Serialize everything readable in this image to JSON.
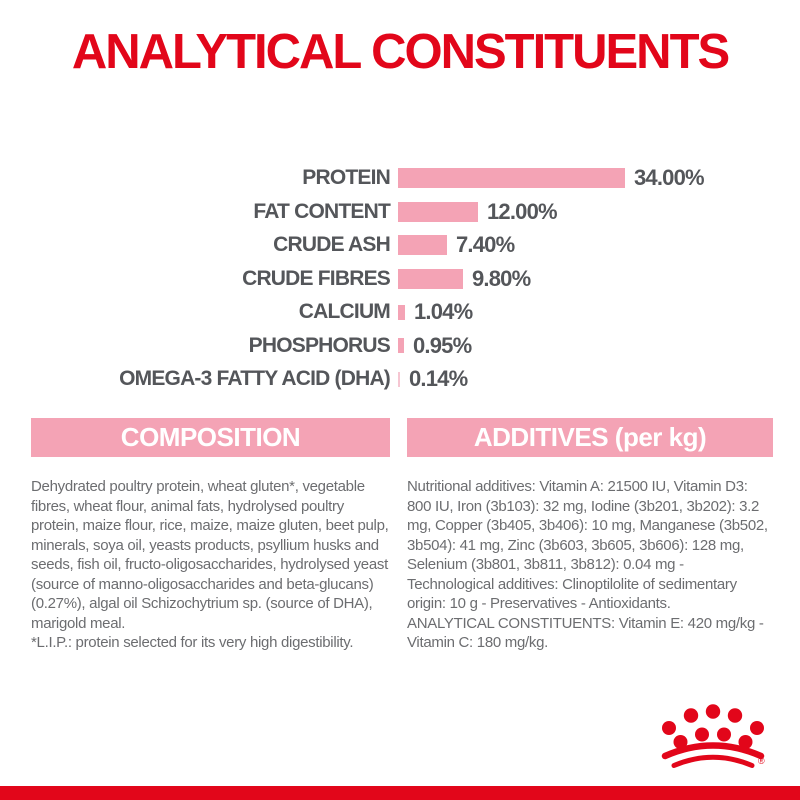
{
  "title": "ANALYTICAL CONSTITUENTS",
  "brand_colors": {
    "red": "#e2061a",
    "pink": "#f4a3b5",
    "light_pink": "#f6c6d2",
    "label_gray": "#54565a",
    "body_gray": "#6c6d70"
  },
  "chart_data": {
    "type": "bar",
    "orientation": "horizontal",
    "title": "ANALYTICAL CONSTITUENTS",
    "categories": [
      "PROTEIN",
      "FAT CONTENT",
      "CRUDE ASH",
      "CRUDE FIBRES",
      "CALCIUM",
      "PHOSPHORUS",
      "OMEGA-3 FATTY ACID (DHA)"
    ],
    "values": [
      34.0,
      12.0,
      7.4,
      9.8,
      1.04,
      0.95,
      0.14
    ],
    "value_labels": [
      "34.00%",
      "12.00%",
      "7.40%",
      "9.80%",
      "1.04%",
      "0.95%",
      "0.14%"
    ],
    "unit": "%",
    "xlim": [
      0,
      35
    ],
    "grid": false,
    "legend": false,
    "bar_color": "#f4a3b5"
  },
  "composition": {
    "header": "COMPOSITION",
    "body": "Dehydrated poultry protein, wheat gluten*, vegetable fibres, wheat flour, animal fats, hydrolysed poultry protein, maize flour, rice, maize, maize gluten, beet pulp, minerals, soya oil, yeasts products, psyllium husks and seeds, fish oil, fructo-oligosaccharides, hydrolysed yeast (source of manno-oligosaccharides and beta-glucans) (0.27%), algal oil Schizochytrium sp. (source of DHA), marigold meal.",
    "footnote": "*L.I.P.: protein selected for its very high digestibility."
  },
  "additives": {
    "header": "ADDITIVES (per kg)",
    "body": "Nutritional additives: Vitamin A: 21500 IU, Vitamin D3: 800 IU, Iron (3b103): 32 mg, Iodine (3b201, 3b202): 3.2 mg, Copper (3b405, 3b406): 10 mg, Manganese (3b502, 3b504): 41 mg, Zinc (3b603, 3b605, 3b606): 128 mg, Selenium (3b801, 3b811, 3b812): 0.04 mg - Technological additives: Clinoptilolite of sedimentary origin: 10 g - Preservatives - Antioxidants.",
    "analytical_constituents": "ANALYTICAL CONSTITUENTS: Vitamin E: 420 mg/kg - Vitamin C: 180 mg/kg."
  },
  "footer": {
    "logo": "royal-canin-crown"
  }
}
